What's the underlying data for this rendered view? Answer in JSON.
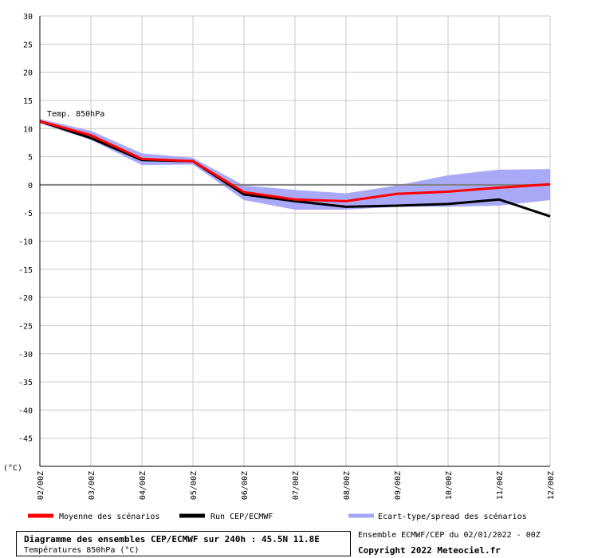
{
  "chart_data": {
    "type": "line",
    "title": "Diagramme des ensembles CEP/ECMWF sur 240h : 45.5N 11.8E",
    "subtitle": "Températures 850hPa (°C)",
    "annotation": "Temp. 850hPa",
    "ylabel": "(°C)",
    "xlabel": "",
    "ylim": [
      -50,
      30
    ],
    "yticks": [
      30,
      25,
      20,
      15,
      10,
      5,
      0,
      -5,
      -10,
      -15,
      -20,
      -25,
      -30,
      -35,
      -40,
      -45
    ],
    "categories": [
      "02/00Z",
      "03/00Z",
      "04/00Z",
      "05/00Z",
      "06/00Z",
      "07/00Z",
      "08/00Z",
      "09/00Z",
      "10/00Z",
      "11/00Z",
      "12/00Z"
    ],
    "grid": true,
    "legend_position": "bottom",
    "series": [
      {
        "name": "Moyenne des scénarios",
        "color": "#ff0000",
        "values": [
          11.3,
          8.8,
          4.6,
          4.2,
          -1.3,
          -2.6,
          -2.9,
          -1.6,
          -1.2,
          -0.5,
          0.1
        ]
      },
      {
        "name": "Run CEP/ECMWF",
        "color": "#000000",
        "values": [
          11.3,
          8.3,
          4.4,
          4.2,
          -1.7,
          -2.9,
          -3.9,
          -3.7,
          -3.4,
          -2.6,
          -5.6
        ]
      }
    ],
    "spread": {
      "name": "Ecart-type/spread des scénarios",
      "color": "#a4a4f8",
      "upper": [
        11.7,
        9.6,
        5.6,
        4.8,
        -0.1,
        -0.9,
        -1.5,
        -0.1,
        1.7,
        2.7,
        2.8
      ],
      "lower": [
        10.9,
        8.0,
        3.5,
        3.6,
        -2.7,
        -4.4,
        -4.4,
        -3.9,
        -3.9,
        -3.7,
        -2.7
      ]
    }
  },
  "footer": {
    "source": "Ensemble ECMWF/CEP du 02/01/2022 - 00Z",
    "copyright": "Copyright 2022 Meteociel.fr"
  }
}
